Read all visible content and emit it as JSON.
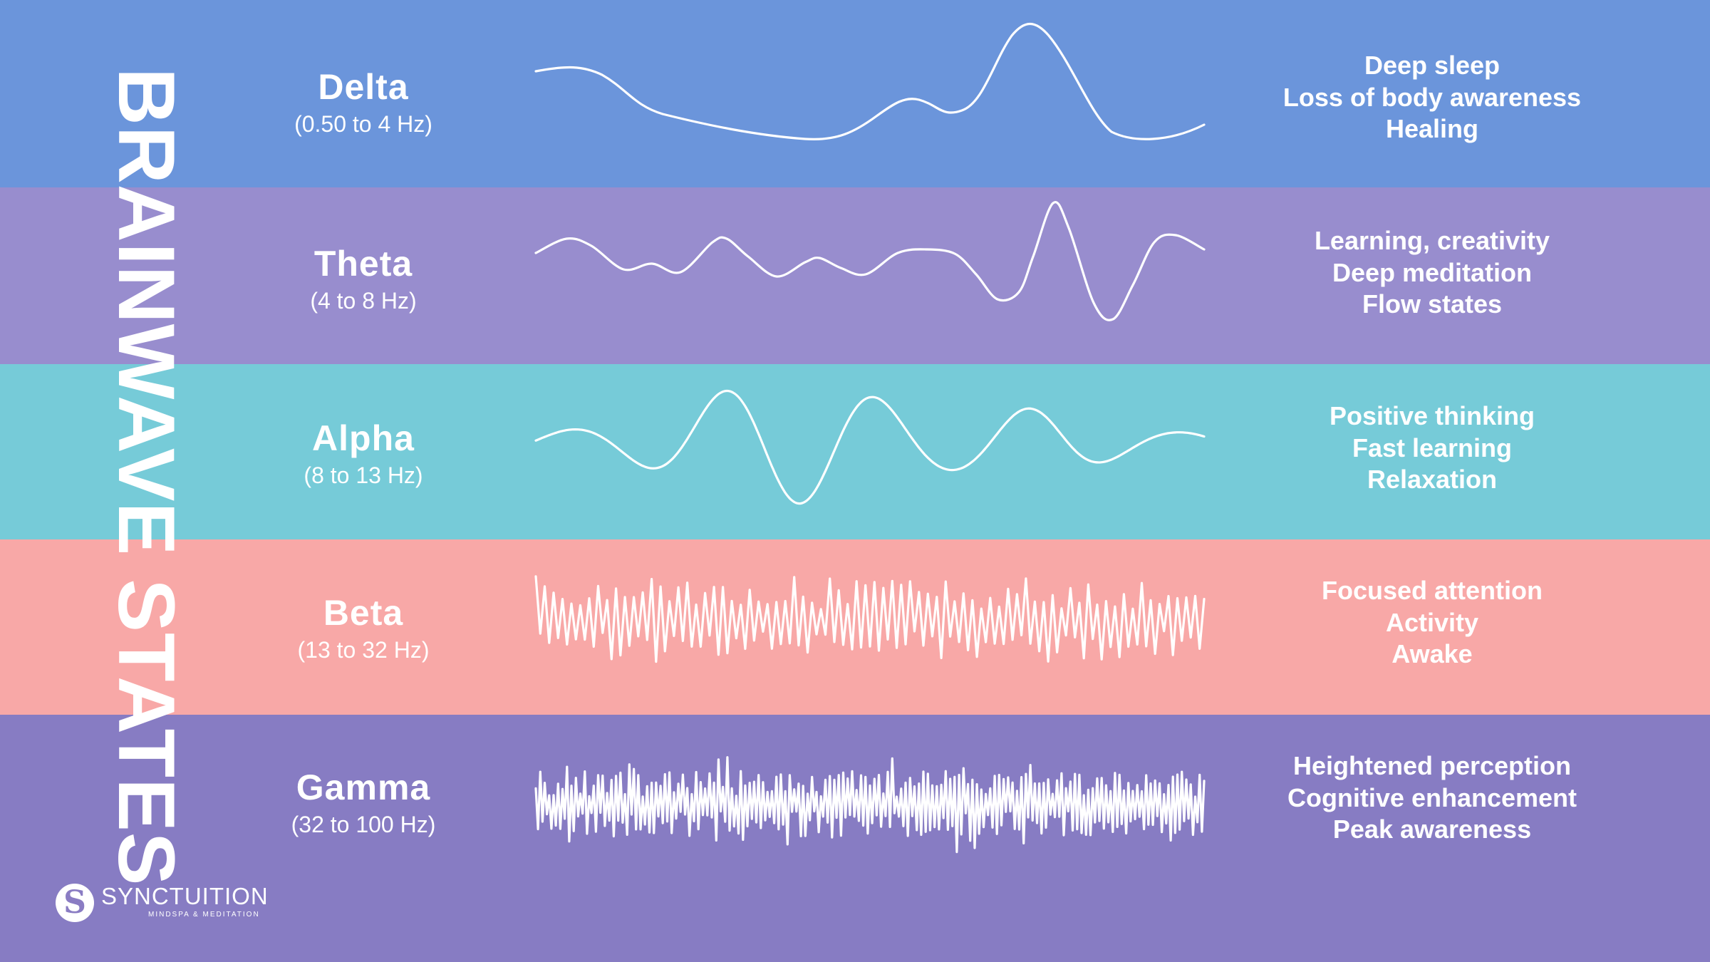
{
  "title": "BRAINWAVE STATES",
  "colors": {
    "delta": "#6b95db",
    "theta": "#988dce",
    "alpha": "#76cbd8",
    "beta": "#f8a8a7",
    "gamma": "#877cc3",
    "text": "#ffffff"
  },
  "bands": [
    {
      "name": "Delta",
      "range": "(0.50 to 4 Hz)",
      "effects": [
        "Deep sleep",
        "Loss of body awareness",
        "Healing"
      ],
      "wave": "delta-wave"
    },
    {
      "name": "Theta",
      "range": "(4 to 8 Hz)",
      "effects": [
        "Learning, creativity",
        "Deep meditation",
        "Flow states"
      ],
      "wave": "theta-wave"
    },
    {
      "name": "Alpha",
      "range": "(8 to 13 Hz)",
      "effects": [
        "Positive thinking",
        "Fast learning",
        "Relaxation"
      ],
      "wave": "alpha-wave"
    },
    {
      "name": "Beta",
      "range": "(13 to 32 Hz)",
      "effects": [
        "Focused attention",
        "Activity",
        "Awake"
      ],
      "wave": "beta-wave"
    },
    {
      "name": "Gamma",
      "range": "(32 to 100 Hz)",
      "effects": [
        "Heightened perception",
        "Cognitive enhancement",
        "Peak awareness"
      ],
      "wave": "gamma-wave"
    }
  ],
  "logo": {
    "icon": "synctuition-s-icon",
    "name": "SYNCTUITION",
    "tagline": "MINDSPA & MEDITATION"
  }
}
